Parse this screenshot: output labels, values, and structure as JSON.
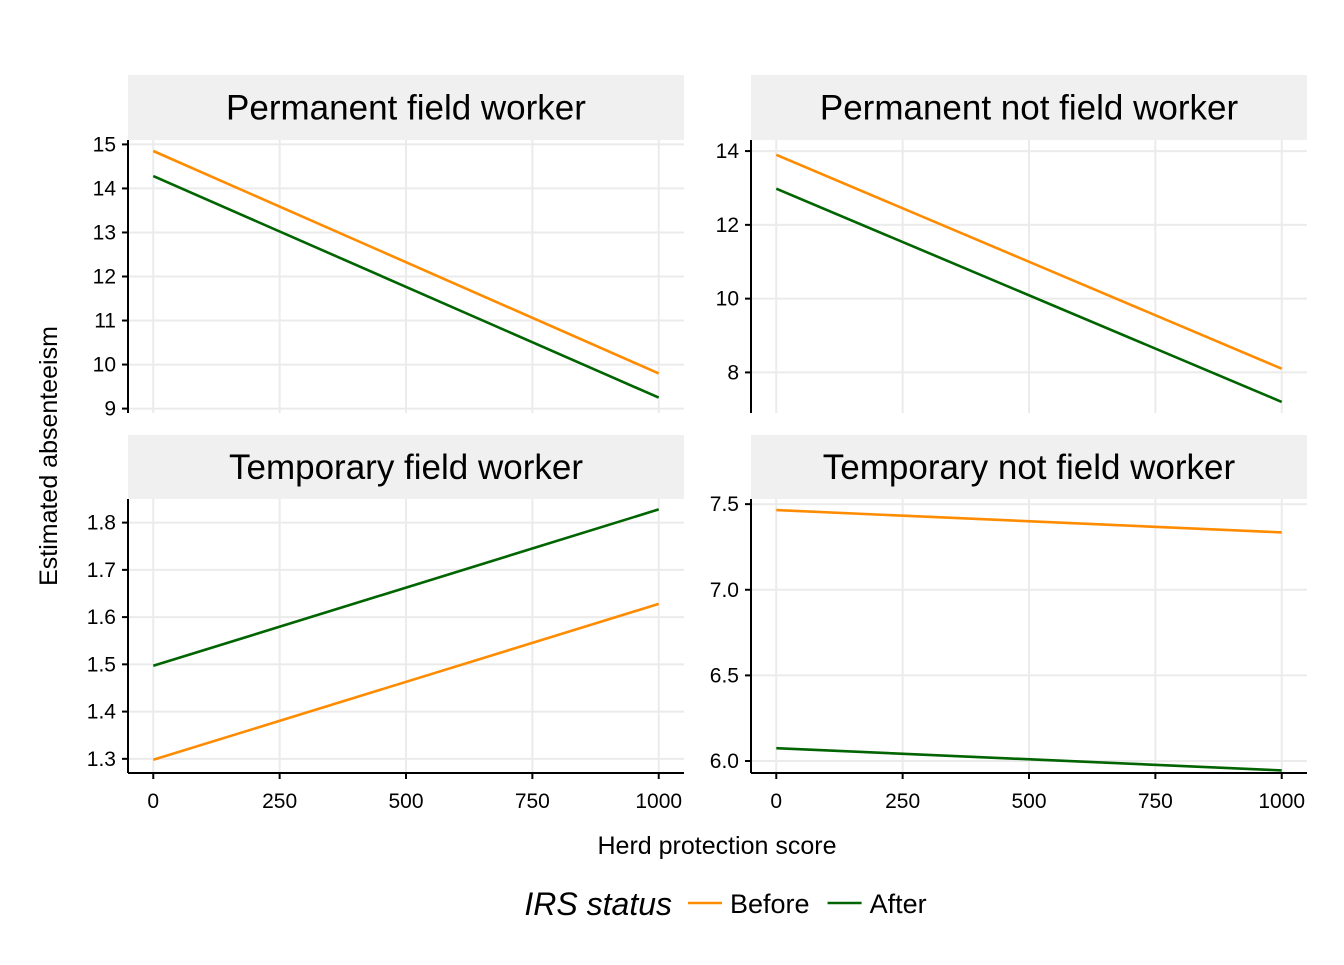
{
  "chart_data": {
    "type": "line",
    "facet_layout": "2x2",
    "xlabel": "Herd protection score",
    "ylabel": "Estimated absenteeism",
    "x_ticks": [
      0,
      250,
      500,
      750,
      1000
    ],
    "xlim": [
      -50,
      1050
    ],
    "grid": true,
    "legend": {
      "title": "IRS status",
      "position": "bottom",
      "entries": [
        {
          "name": "Before",
          "color": "#ff8c00"
        },
        {
          "name": "After",
          "color": "#006400"
        }
      ]
    },
    "panels": [
      {
        "title": "Permanent field worker",
        "ylim": [
          8.9,
          15.1
        ],
        "y_ticks": [
          "9",
          "10",
          "11",
          "12",
          "13",
          "14",
          "15"
        ],
        "y_tick_values": [
          9,
          10,
          11,
          12,
          13,
          14,
          15
        ],
        "series": [
          {
            "name": "Before",
            "x": [
              0,
              1000
            ],
            "y": [
              14.85,
              9.8
            ]
          },
          {
            "name": "After",
            "x": [
              0,
              1000
            ],
            "y": [
              14.28,
              9.25
            ]
          }
        ]
      },
      {
        "title": "Permanent not field worker",
        "ylim": [
          6.9,
          14.3
        ],
        "y_ticks": [
          "8",
          "10",
          "12",
          "14"
        ],
        "y_tick_values": [
          8,
          10,
          12,
          14
        ],
        "series": [
          {
            "name": "Before",
            "x": [
              0,
              1000
            ],
            "y": [
              13.9,
              8.1
            ]
          },
          {
            "name": "After",
            "x": [
              0,
              1000
            ],
            "y": [
              12.98,
              7.2
            ]
          }
        ]
      },
      {
        "title": "Temporary field worker",
        "ylim": [
          1.27,
          1.85
        ],
        "y_ticks": [
          "1.3",
          "1.4",
          "1.5",
          "1.6",
          "1.7",
          "1.8"
        ],
        "y_tick_values": [
          1.3,
          1.4,
          1.5,
          1.6,
          1.7,
          1.8
        ],
        "series": [
          {
            "name": "Before",
            "x": [
              0,
              1000
            ],
            "y": [
              1.298,
              1.628
            ]
          },
          {
            "name": "After",
            "x": [
              0,
              1000
            ],
            "y": [
              1.497,
              1.828
            ]
          }
        ]
      },
      {
        "title": "Temporary not field worker",
        "ylim": [
          5.93,
          7.53
        ],
        "y_ticks": [
          "6.0",
          "6.5",
          "7.0",
          "7.5"
        ],
        "y_tick_values": [
          6.0,
          6.5,
          7.0,
          7.5
        ],
        "series": [
          {
            "name": "Before",
            "x": [
              0,
              1000
            ],
            "y": [
              7.465,
              7.335
            ]
          },
          {
            "name": "After",
            "x": [
              0,
              1000
            ],
            "y": [
              6.075,
              5.945
            ]
          }
        ]
      }
    ]
  }
}
